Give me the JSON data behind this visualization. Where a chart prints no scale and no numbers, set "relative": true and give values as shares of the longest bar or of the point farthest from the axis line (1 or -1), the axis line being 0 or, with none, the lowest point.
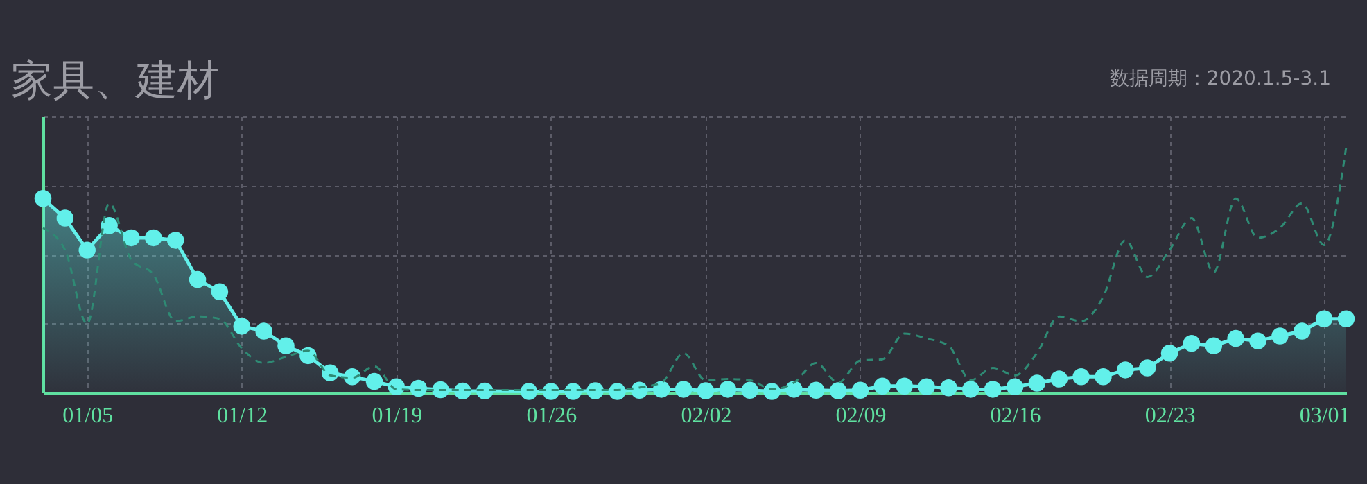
{
  "chart_data": {
    "type": "area",
    "title": "家具、建材",
    "annotations": [
      "数据周期：2020.1.5-3.1"
    ],
    "relative": true,
    "grid": true,
    "x": [
      "2020-01-03",
      "2020-01-04",
      "2020-01-05",
      "2020-01-06",
      "2020-01-07",
      "2020-01-08",
      "2020-01-09",
      "2020-01-10",
      "2020-01-11",
      "2020-01-12",
      "2020-01-13",
      "2020-01-14",
      "2020-01-15",
      "2020-01-16",
      "2020-01-17",
      "2020-01-18",
      "2020-01-19",
      "2020-01-20",
      "2020-01-21",
      "2020-01-22",
      "2020-01-23",
      "2020-01-24",
      "2020-01-25",
      "2020-01-26",
      "2020-01-27",
      "2020-01-28",
      "2020-01-29",
      "2020-01-30",
      "2020-01-31",
      "2020-02-01",
      "2020-02-02",
      "2020-02-03",
      "2020-02-04",
      "2020-02-05",
      "2020-02-06",
      "2020-02-07",
      "2020-02-08",
      "2020-02-09",
      "2020-02-10",
      "2020-02-11",
      "2020-02-12",
      "2020-02-13",
      "2020-02-14",
      "2020-02-15",
      "2020-02-16",
      "2020-02-17",
      "2020-02-18",
      "2020-02-19",
      "2020-02-20",
      "2020-02-21",
      "2020-02-22",
      "2020-02-23",
      "2020-02-24",
      "2020-02-25",
      "2020-02-26",
      "2020-02-27",
      "2020-02-28",
      "2020-02-29",
      "2020-03-01",
      "2020-03-02"
    ],
    "xlim": [
      "2020-01-03",
      "2020-03-02"
    ],
    "xticks": [
      {
        "value": "2020-01-05",
        "label": "01/05"
      },
      {
        "value": "2020-01-12",
        "label": "01/12"
      },
      {
        "value": "2020-01-19",
        "label": "01/19"
      },
      {
        "value": "2020-01-26",
        "label": "01/26"
      },
      {
        "value": "2020-02-02",
        "label": "02/02"
      },
      {
        "value": "2020-02-09",
        "label": "02/09"
      },
      {
        "value": "2020-02-16",
        "label": "02/16"
      },
      {
        "value": "2020-02-23",
        "label": "02/23"
      },
      {
        "value": "2020-03-01",
        "label": "03/01"
      }
    ],
    "series": [
      {
        "color": "#62f0ea",
        "marker": "circle",
        "line_style": "solid",
        "values": [
          0.79,
          0.71,
          0.58,
          0.68,
          0.63,
          0.63,
          0.62,
          0.46,
          0.41,
          0.27,
          0.25,
          0.19,
          0.15,
          0.08,
          0.064,
          0.045,
          0.023,
          0.017,
          0.011,
          0.006,
          0.006,
          null,
          0.004,
          0.004,
          0.004,
          0.007,
          0.004,
          0.009,
          0.013,
          0.013,
          0.007,
          0.013,
          0.009,
          0.004,
          0.013,
          0.009,
          0.007,
          0.009,
          0.026,
          0.026,
          0.023,
          0.019,
          0.013,
          0.013,
          0.023,
          0.038,
          0.055,
          0.064,
          0.064,
          0.092,
          0.1,
          0.16,
          0.2,
          0.19,
          0.22,
          0.21,
          0.23,
          0.25,
          0.3,
          0.3
        ]
      },
      {
        "type": "line",
        "color": "#2f8a74",
        "marker": "none",
        "line_style": "dashed",
        "values": [
          0.67,
          0.58,
          0.28,
          0.77,
          0.54,
          0.48,
          0.29,
          0.31,
          0.3,
          0.18,
          0.12,
          0.145,
          0.17,
          0.07,
          0.06,
          0.107,
          0.013,
          0.01,
          0.01,
          0.01,
          0.01,
          0.01,
          0.01,
          0.01,
          0.01,
          0.01,
          0.01,
          0.02,
          0.04,
          0.16,
          0.05,
          0.055,
          0.05,
          0.013,
          0.04,
          0.12,
          0.04,
          0.13,
          0.135,
          0.24,
          0.22,
          0.19,
          0.05,
          0.1,
          0.07,
          0.16,
          0.31,
          0.29,
          0.39,
          0.62,
          0.47,
          0.58,
          0.71,
          0.49,
          0.79,
          0.63,
          0.67,
          0.77,
          0.6,
          1.0
        ]
      }
    ]
  }
}
